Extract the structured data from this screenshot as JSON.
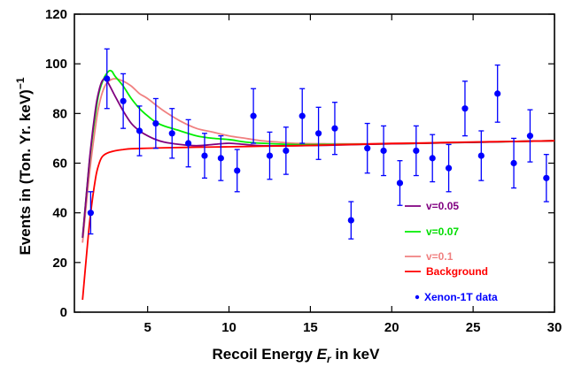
{
  "chart_data": {
    "type": "line",
    "xlabel": "Recoil Energy E_r in keV",
    "xlabel_parts": {
      "prefix": "Recoil Energy ",
      "var": "E",
      "sub": "r",
      "suffix": " in keV"
    },
    "ylabel": "Events in (Ton. Yr. keV)",
    "ylabel_sup": "−1",
    "xlim": [
      0.5,
      30
    ],
    "ylim": [
      0,
      120
    ],
    "xticks": [
      5,
      10,
      15,
      20,
      25,
      30
    ],
    "yticks": [
      0,
      20,
      40,
      60,
      80,
      100,
      120
    ],
    "grid": false,
    "legend_position": "bottom-right",
    "series": [
      {
        "name": "v=0.05",
        "color": "#800080",
        "kind": "line",
        "x": [
          1.0,
          1.3,
          1.5,
          1.8,
          2.0,
          2.2,
          2.4,
          2.6,
          3.0,
          3.5,
          4.0,
          4.5,
          5.0,
          5.5,
          6.0,
          7.0,
          8.0,
          9.0,
          10.0,
          11.0,
          12.0,
          14.0,
          16.0,
          18.0,
          20.0,
          22.0,
          24.0,
          26.0,
          28.0,
          30.0
        ],
        "y": [
          30,
          52,
          66,
          82,
          89,
          93,
          94,
          92,
          87,
          81,
          76,
          73,
          71,
          69.5,
          68.5,
          67.5,
          67,
          67.5,
          68,
          67.5,
          67,
          67,
          67.2,
          67.5,
          67.8,
          68,
          68.3,
          68.5,
          68.8,
          69
        ]
      },
      {
        "name": "v=0.07",
        "color": "#00ee00",
        "kind": "line",
        "x": [
          1.0,
          1.3,
          1.5,
          1.8,
          2.0,
          2.3,
          2.6,
          2.8,
          3.0,
          3.5,
          4.0,
          4.5,
          5.0,
          5.5,
          6.0,
          7.0,
          8.0,
          9.0,
          10.0,
          11.0,
          12.0,
          14.0,
          16.0,
          18.0,
          20.0,
          22.0,
          24.0,
          26.0,
          28.0,
          30.0
        ],
        "y": [
          30,
          52,
          65,
          80,
          88,
          94,
          97,
          97,
          95,
          91,
          86,
          82,
          79,
          76.5,
          75,
          73,
          71,
          70,
          69.5,
          68.5,
          68,
          67.5,
          67.5,
          67.6,
          67.8,
          68,
          68.3,
          68.5,
          68.8,
          69
        ]
      },
      {
        "name": "v=0.1",
        "color": "#f08080",
        "kind": "line",
        "x": [
          1.0,
          1.3,
          1.5,
          1.8,
          2.0,
          2.3,
          2.6,
          3.0,
          3.5,
          4.0,
          4.5,
          5.0,
          6.0,
          7.0,
          8.0,
          9.0,
          10.0,
          11.0,
          12.0,
          13.0,
          14.0,
          16.0,
          18.0,
          20.0,
          22.0,
          24.0,
          26.0,
          28.0,
          30.0
        ],
        "y": [
          28,
          48,
          60,
          75,
          83,
          90,
          93,
          94,
          93,
          91,
          88,
          86,
          81,
          77,
          74,
          72.5,
          71,
          70,
          69,
          68.5,
          68,
          67.8,
          67.8,
          68,
          68.2,
          68.4,
          68.6,
          68.8,
          69
        ]
      },
      {
        "name": "Background",
        "color": "#ff0000",
        "kind": "line",
        "x": [
          1.0,
          1.3,
          1.5,
          1.8,
          2.0,
          2.2,
          2.5,
          3.0,
          3.5,
          4.0,
          5.0,
          6.0,
          8.0,
          10.0,
          12.0,
          14.0,
          16.0,
          18.0,
          20.0,
          22.0,
          24.0,
          26.0,
          28.0,
          30.0
        ],
        "y": [
          5,
          27,
          40,
          54,
          59.5,
          62.5,
          64,
          65,
          65.5,
          65.8,
          66,
          66.2,
          66.4,
          66.6,
          66.8,
          67,
          67.3,
          67.6,
          67.9,
          68.1,
          68.4,
          68.6,
          68.8,
          69
        ]
      },
      {
        "name": "Xenon-1T data",
        "color": "#0000ff",
        "kind": "errorbar",
        "points": [
          {
            "x": 1.5,
            "y": 40,
            "err": 8.5
          },
          {
            "x": 2.5,
            "y": 94,
            "err": 12
          },
          {
            "x": 3.5,
            "y": 85,
            "err": 11
          },
          {
            "x": 4.5,
            "y": 73,
            "err": 10
          },
          {
            "x": 5.5,
            "y": 76,
            "err": 10
          },
          {
            "x": 6.5,
            "y": 72,
            "err": 10
          },
          {
            "x": 7.5,
            "y": 68,
            "err": 9.5
          },
          {
            "x": 8.5,
            "y": 63,
            "err": 9
          },
          {
            "x": 9.5,
            "y": 62,
            "err": 9
          },
          {
            "x": 10.5,
            "y": 57,
            "err": 8.5
          },
          {
            "x": 11.5,
            "y": 79,
            "err": 11
          },
          {
            "x": 12.5,
            "y": 63,
            "err": 9.5
          },
          {
            "x": 13.5,
            "y": 65,
            "err": 9.5
          },
          {
            "x": 14.5,
            "y": 79,
            "err": 11
          },
          {
            "x": 15.5,
            "y": 72,
            "err": 10.5
          },
          {
            "x": 16.5,
            "y": 74,
            "err": 10.5
          },
          {
            "x": 17.5,
            "y": 37,
            "err": 7.5
          },
          {
            "x": 18.5,
            "y": 66,
            "err": 10
          },
          {
            "x": 19.5,
            "y": 65,
            "err": 10
          },
          {
            "x": 20.5,
            "y": 52,
            "err": 9
          },
          {
            "x": 21.5,
            "y": 65,
            "err": 10
          },
          {
            "x": 22.5,
            "y": 62,
            "err": 9.5
          },
          {
            "x": 23.5,
            "y": 58,
            "err": 9.5
          },
          {
            "x": 24.5,
            "y": 82,
            "err": 11
          },
          {
            "x": 25.5,
            "y": 63,
            "err": 10
          },
          {
            "x": 26.5,
            "y": 88,
            "err": 11.5
          },
          {
            "x": 27.5,
            "y": 60,
            "err": 10
          },
          {
            "x": 28.5,
            "y": 71,
            "err": 10.5
          },
          {
            "x": 29.5,
            "y": 54,
            "err": 9.5
          }
        ]
      }
    ]
  }
}
